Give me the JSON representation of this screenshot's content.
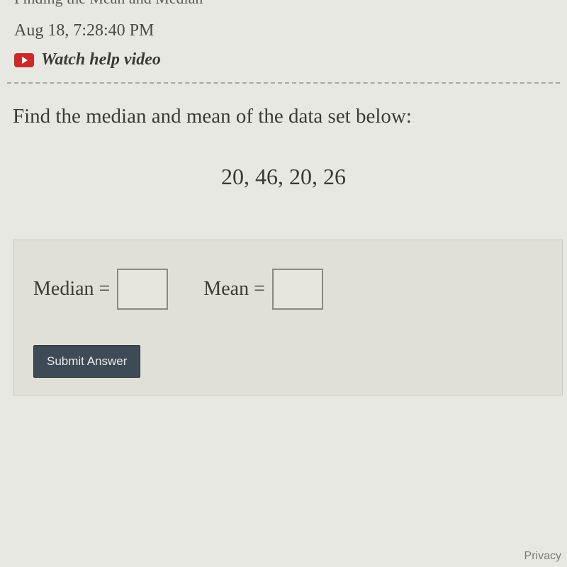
{
  "header": {
    "cut_title": "Finding the Mean and Median",
    "timestamp": "Aug 18, 7:28:40 PM",
    "video_link_text": "Watch help video"
  },
  "question": {
    "prompt": "Find the median and mean of the data set below:",
    "dataset_display": "20, 46, 20, 26",
    "data_values": [
      20,
      46,
      20,
      26
    ]
  },
  "answer": {
    "median_label": "Median =",
    "median_value": "",
    "mean_label": "Mean =",
    "mean_value": "",
    "submit_label": "Submit Answer"
  },
  "footer": {
    "privacy_label": "Privacy"
  },
  "style": {
    "background_color": "#e8e8e2",
    "answer_bg": "#e0e0d8",
    "text_color": "#3a3a3a",
    "submit_bg": "#3e4a56",
    "yt_red": "#cc2a2a",
    "divider_color": "#a8a8a0",
    "prompt_fontsize": 29,
    "dataset_fontsize": 32,
    "label_fontsize": 28
  }
}
